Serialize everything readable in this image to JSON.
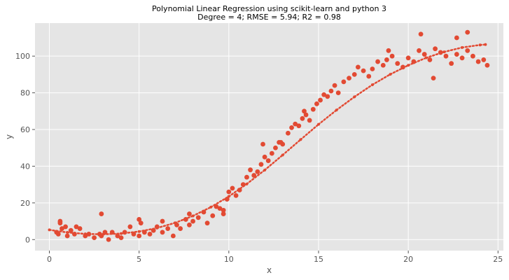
{
  "chart_data": {
    "type": "scatter",
    "title": "Polynomial Linear Regression using scikit-learn and python 3",
    "subtitle": "Degree = 4; RMSE = 5.94; R2 = 0.98",
    "xlabel": "x",
    "ylabel": "y",
    "xlim": [
      -0.8,
      25.3
    ],
    "ylim": [
      -6,
      118
    ],
    "xticks": [
      0,
      5,
      10,
      15,
      20,
      25
    ],
    "yticks": [
      0,
      20,
      40,
      60,
      80,
      100
    ],
    "grid": true,
    "colors": {
      "points": "#E24A33",
      "fit": "#E24A33",
      "background": "#E5E5E5",
      "grid": "#FFFFFF"
    },
    "series": [
      {
        "kind": "data",
        "x": [
          0.4,
          0.5,
          0.6,
          0.7,
          0.9,
          1.0,
          1.2,
          1.4,
          1.5,
          1.7,
          2.0,
          2.2,
          2.5,
          2.8,
          2.9,
          3.1,
          3.3,
          3.5,
          3.8,
          4.0,
          4.2,
          4.5,
          4.7,
          5.0,
          5.1,
          5.3,
          5.6,
          5.8,
          6.0,
          6.3,
          6.6,
          6.9,
          7.1,
          7.3,
          7.6,
          7.8,
          8.0,
          8.3,
          8.6,
          8.8,
          9.1,
          9.3,
          9.5,
          9.7,
          9.9,
          10.0,
          10.2,
          10.4,
          10.6,
          10.8,
          11.0,
          11.2,
          11.4,
          11.6,
          11.8,
          12.0,
          12.2,
          12.4,
          12.6,
          12.8,
          13.0,
          13.3,
          13.5,
          13.7,
          13.9,
          14.1,
          14.3,
          14.5,
          14.7,
          14.9,
          15.1,
          15.3,
          15.5,
          15.7,
          15.9,
          16.1,
          16.4,
          16.7,
          17.0,
          17.2,
          17.5,
          17.8,
          18.0,
          18.3,
          18.6,
          18.8,
          19.1,
          19.4,
          19.7,
          20.0,
          20.3,
          20.6,
          20.9,
          21.2,
          21.5,
          21.8,
          22.1,
          22.4,
          22.7,
          23.0,
          23.3,
          23.6,
          23.9,
          24.2,
          24.4,
          2.9,
          20.7,
          23.3,
          22.7,
          21.4,
          0.6,
          5.0,
          6.3,
          7.8,
          9.7,
          11.9,
          18.9,
          12.9,
          14.2
        ],
        "y": [
          4,
          3,
          9,
          6,
          7,
          2,
          5,
          3,
          7,
          6,
          2,
          3,
          1,
          3,
          2,
          4,
          0,
          4,
          2,
          1,
          4,
          7,
          3,
          2,
          9,
          4,
          3,
          5,
          7,
          4,
          6,
          2,
          8,
          6,
          11,
          8,
          10,
          12,
          15,
          9,
          13,
          18,
          17,
          14,
          22,
          26,
          28,
          24,
          27,
          30,
          34,
          38,
          35,
          37,
          41,
          45,
          43,
          47,
          50,
          53,
          52,
          58,
          61,
          63,
          62,
          66,
          68,
          65,
          71,
          74,
          76,
          79,
          78,
          81,
          84,
          80,
          86,
          88,
          90,
          94,
          92,
          89,
          93,
          97,
          95,
          98,
          100,
          96,
          94,
          99,
          97,
          103,
          101,
          98,
          104,
          102,
          100,
          96,
          101,
          99,
          103,
          100,
          97,
          98,
          95,
          14,
          112,
          113,
          110,
          88,
          10,
          11,
          10,
          14,
          16,
          52,
          103,
          53,
          70
        ]
      },
      {
        "kind": "fit",
        "name": "",
        "x": [
          0,
          1,
          2,
          3,
          4,
          5,
          6,
          7,
          8,
          9,
          10,
          11,
          12,
          13,
          14,
          15,
          16,
          17,
          18,
          19,
          20,
          21,
          22,
          23,
          24,
          24.3
        ],
        "y": [
          5.3,
          3.9,
          3.1,
          2.9,
          3.3,
          4.4,
          6.3,
          9.1,
          12.9,
          17.7,
          23.5,
          30.3,
          37.9,
          46.1,
          54.5,
          62.8,
          70.6,
          77.8,
          84.4,
          90.1,
          95.0,
          99.1,
          102.3,
          104.7,
          106.1,
          106.3
        ]
      }
    ]
  }
}
